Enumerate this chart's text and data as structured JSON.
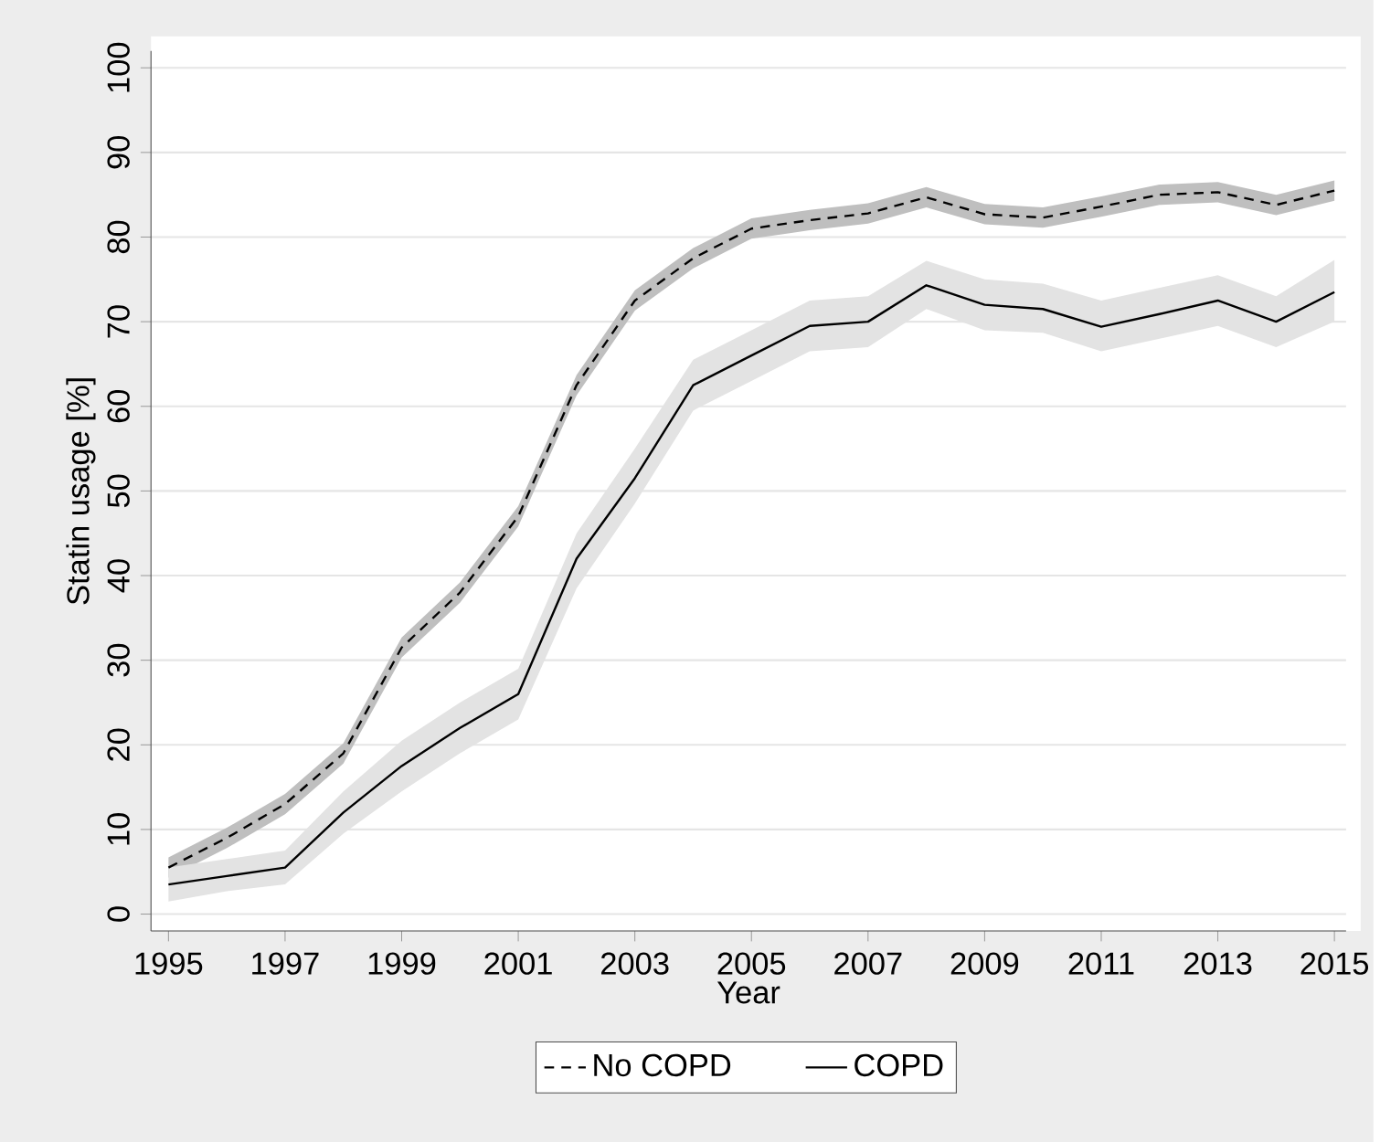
{
  "chart_data": {
    "type": "line",
    "xlabel": "Year",
    "ylabel": "Statin usage [%]",
    "x": [
      1995,
      1996,
      1997,
      1998,
      1999,
      2000,
      2001,
      2002,
      2003,
      2004,
      2005,
      2006,
      2007,
      2008,
      2009,
      2010,
      2011,
      2012,
      2013,
      2014,
      2015
    ],
    "series": [
      {
        "name": "No COPD",
        "color": "#000000",
        "line_style": "dashed",
        "values": [
          5.5,
          9,
          13,
          19,
          31.5,
          38,
          47,
          62.5,
          72.5,
          77.5,
          81,
          82,
          82.8,
          84.7,
          82.7,
          82.3,
          83.6,
          85,
          85.3,
          83.8,
          85.5
        ],
        "lower": [
          4.3,
          7.8,
          11.8,
          17.8,
          30.3,
          36.8,
          45.8,
          61.3,
          71.3,
          76.3,
          79.8,
          80.8,
          81.6,
          83.5,
          81.5,
          81.1,
          82.4,
          83.8,
          84.1,
          82.6,
          84.3
        ],
        "upper": [
          6.7,
          10.2,
          14.2,
          20.2,
          32.7,
          39.2,
          48.2,
          63.7,
          73.7,
          78.7,
          82.2,
          83.2,
          84,
          85.9,
          83.9,
          83.5,
          84.8,
          86.2,
          86.5,
          85,
          86.7
        ]
      },
      {
        "name": "COPD",
        "color": "#000000",
        "line_style": "solid",
        "values": [
          3.5,
          4.5,
          5.5,
          12,
          17.5,
          22,
          26,
          42,
          51.5,
          62.5,
          66,
          69.5,
          70,
          74.3,
          72,
          71.5,
          69.4,
          70.9,
          72.5,
          70,
          73.5
        ],
        "lower": [
          1.5,
          2.7,
          3.5,
          9.5,
          14.5,
          19,
          23,
          38.5,
          48.5,
          59.5,
          63,
          66.5,
          67,
          71.5,
          69,
          68.7,
          66.5,
          68,
          69.5,
          67,
          70
        ],
        "upper": [
          5.5,
          6.5,
          7.5,
          14.5,
          20.5,
          25,
          29,
          45,
          55,
          65.5,
          69,
          72.5,
          73,
          77.2,
          75,
          74.5,
          72.5,
          74,
          75.5,
          73,
          77.3
        ]
      }
    ],
    "xlim": [
      1994.7,
      2015.2
    ],
    "ylim": [
      -2,
      102
    ],
    "xticks": [
      1995,
      1997,
      1999,
      2001,
      2003,
      2005,
      2007,
      2009,
      2011,
      2013,
      2015
    ],
    "yticks": [
      0,
      10,
      20,
      30,
      40,
      50,
      60,
      70,
      80,
      90,
      100
    ],
    "grid": "y",
    "legend": "bottom",
    "marker": "none"
  }
}
